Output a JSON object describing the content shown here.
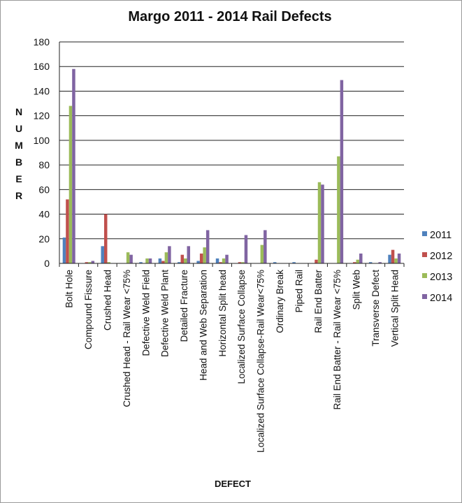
{
  "chart_data": {
    "type": "bar",
    "title": "Margo 2011 - 2014 Rail Defects",
    "xlabel": "DEFECT",
    "ylabel": "NUMBER",
    "ylim": [
      0,
      180
    ],
    "yticks": [
      0,
      20,
      40,
      60,
      80,
      100,
      120,
      140,
      160,
      180
    ],
    "grid": true,
    "legend_position": "right",
    "categories": [
      "Bolt Hole",
      "Compound Fissure",
      "Crushed Head",
      "Crushed Head - Rail Wear <75%",
      "Defective Weld Field",
      "Defective Weld Plant",
      "Detailed Fracture",
      "Head and Web Separation",
      "Horizontal Split head",
      "Localized Surface Collapse",
      "Localized Surface Collapse-Rail Wear<75%",
      "Ordinary Break",
      "Piped Rail",
      "Rail End Batter",
      "Rail End Batter - Rail Wear <75%",
      "Split Web",
      "Transverse Defect",
      "Vertical Split Head"
    ],
    "series": [
      {
        "name": "2011",
        "color": "#4F81BD",
        "values": [
          21,
          0,
          14,
          0,
          1,
          4,
          1,
          2,
          4,
          0,
          0,
          1,
          1,
          0,
          0,
          0,
          1,
          7
        ]
      },
      {
        "name": "2012",
        "color": "#C0504D",
        "values": [
          52,
          1,
          40,
          0,
          0,
          2,
          7,
          8,
          1,
          1,
          0,
          0,
          0,
          3,
          0,
          1,
          0,
          11
        ]
      },
      {
        "name": "2013",
        "color": "#9BBB59",
        "values": [
          128,
          1,
          1,
          9,
          4,
          9,
          4,
          13,
          4,
          1,
          15,
          0,
          0,
          66,
          87,
          3,
          0,
          4
        ]
      },
      {
        "name": "2014",
        "color": "#8064A2",
        "values": [
          158,
          2,
          0,
          7,
          4,
          14,
          14,
          27,
          7,
          23,
          27,
          0,
          0,
          64,
          149,
          8,
          1,
          8
        ]
      }
    ]
  }
}
